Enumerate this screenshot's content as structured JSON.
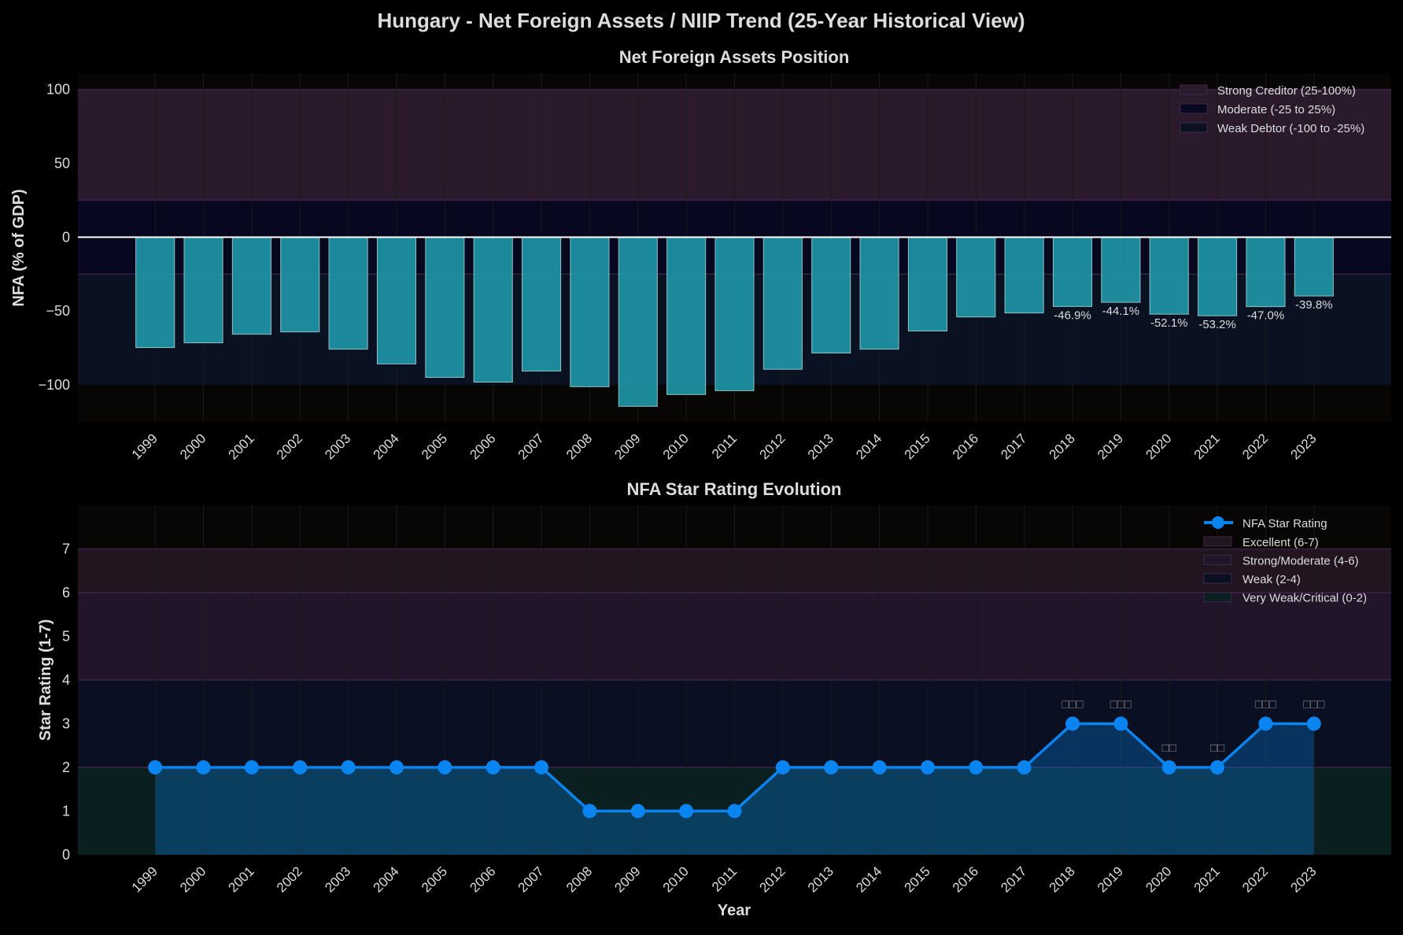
{
  "title": "Hungary - Net Foreign Assets / NIIP Trend (25-Year Historical View)",
  "chart_data": [
    {
      "type": "bar",
      "title": "Net Foreign Assets Position",
      "xlabel": "",
      "ylabel": "NFA (% of GDP)",
      "categories": [
        "1999",
        "2000",
        "2001",
        "2002",
        "2003",
        "2004",
        "2005",
        "2006",
        "2007",
        "2008",
        "2009",
        "2010",
        "2011",
        "2012",
        "2013",
        "2014",
        "2015",
        "2016",
        "2017",
        "2018",
        "2019",
        "2020",
        "2021",
        "2022",
        "2023"
      ],
      "values": [
        -74.7,
        -71.5,
        -65.7,
        -64.1,
        -75.8,
        -85.8,
        -94.9,
        -98.1,
        -90.6,
        -101.2,
        -114.5,
        -106.5,
        -103.9,
        -89.4,
        -78.4,
        -75.8,
        -63.5,
        -54.0,
        -51.3,
        -46.9,
        -44.1,
        -52.1,
        -53.2,
        -47.0,
        -39.8
      ],
      "data_labels": {
        "2018": "-46.9%",
        "2019": "-44.1%",
        "2020": "-52.1%",
        "2021": "-53.2%",
        "2022": "-47.0%",
        "2023": "-39.8%"
      },
      "ylim": [
        -125,
        111
      ],
      "yticks": [
        100,
        50,
        0,
        -50,
        -100
      ],
      "ytick_labels": [
        "100",
        "50",
        "0",
        "−50",
        "−100"
      ],
      "bands": [
        {
          "label": "Strong Creditor (25-100%)",
          "range": [
            25,
            100
          ],
          "color": "#2a1a2c"
        },
        {
          "label": "Moderate (-25 to 25%)",
          "range": [
            -25,
            25
          ],
          "color": "#07071f"
        },
        {
          "label": "Weak Debtor (-100 to -25%)",
          "range": [
            -100,
            -25
          ],
          "color": "#0a1120"
        }
      ],
      "bar_color": "#1f98a8",
      "legend_position": "top-right",
      "grid": true
    },
    {
      "type": "line",
      "title": "NFA Star Rating Evolution",
      "xlabel": "Year",
      "ylabel": "Star Rating (1-7)",
      "categories": [
        "1999",
        "2000",
        "2001",
        "2002",
        "2003",
        "2004",
        "2005",
        "2006",
        "2007",
        "2008",
        "2009",
        "2010",
        "2011",
        "2012",
        "2013",
        "2014",
        "2015",
        "2016",
        "2017",
        "2018",
        "2019",
        "2020",
        "2021",
        "2022",
        "2023"
      ],
      "series": [
        {
          "name": "NFA Star Rating",
          "values": [
            2,
            2,
            2,
            2,
            2,
            2,
            2,
            2,
            2,
            1,
            1,
            1,
            1,
            2,
            2,
            2,
            2,
            2,
            2,
            3,
            3,
            2,
            2,
            3,
            3
          ],
          "color": "#0a84f0"
        }
      ],
      "point_labels": {
        "2018": "□□□",
        "2019": "□□□",
        "2020": "□□",
        "2021": "□□",
        "2022": "□□□",
        "2023": "□□□"
      },
      "ylim": [
        0,
        8
      ],
      "yticks": [
        0,
        1,
        2,
        3,
        4,
        5,
        6,
        7
      ],
      "ytick_labels": [
        "0",
        "1",
        "2",
        "3",
        "4",
        "5",
        "6",
        "7"
      ],
      "bands": [
        {
          "label": "Excellent (6-7)",
          "range": [
            6,
            7
          ],
          "color": "#22151f"
        },
        {
          "label": "Strong/Moderate (4-6)",
          "range": [
            4,
            6
          ],
          "color": "#22152a"
        },
        {
          "label": "Weak (2-4)",
          "range": [
            2,
            4
          ],
          "color": "#0a1022"
        },
        {
          "label": "Very Weak/Critical (0-2)",
          "range": [
            0,
            2
          ],
          "color": "#0a2020"
        }
      ],
      "legend_position": "top-right",
      "grid": true
    }
  ]
}
